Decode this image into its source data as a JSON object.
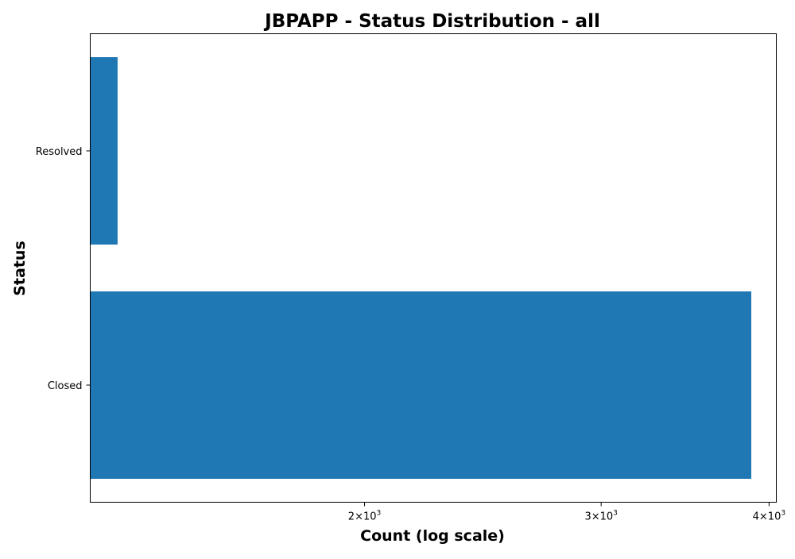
{
  "chart_data": {
    "type": "bar",
    "orientation": "horizontal",
    "title": "JBPAPP - Status Distribution - all",
    "xlabel": "Count (log scale)",
    "ylabel": "Status",
    "xscale": "log",
    "xlim": [
      1250,
      4050
    ],
    "categories": [
      "Resolved",
      "Closed"
    ],
    "values": [
      1310,
      3880
    ],
    "bar_color": "#1f77b4",
    "x_ticks": [
      {
        "value": 2000,
        "label": "2×10",
        "exponent": "3"
      },
      {
        "value": 3000,
        "label": "3×10",
        "exponent": "3"
      },
      {
        "value": 4000,
        "label": "4×10",
        "exponent": "3"
      }
    ],
    "grid": false,
    "legend": "none"
  }
}
